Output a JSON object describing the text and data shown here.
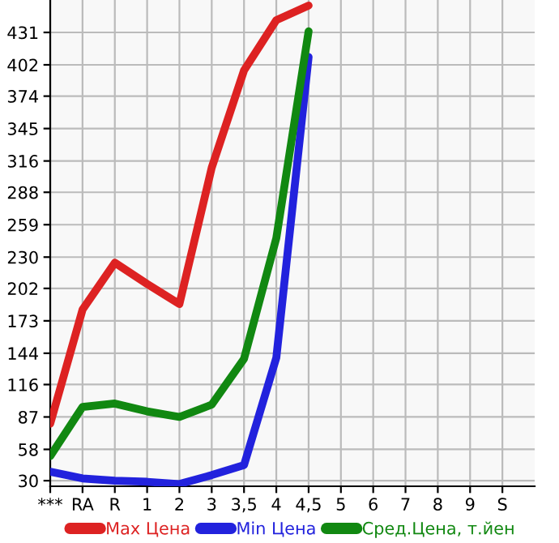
{
  "chart_data": {
    "type": "line",
    "categories": [
      "***",
      "RA",
      "R",
      "1",
      "2",
      "3",
      "3,5",
      "4",
      "4,5",
      "5",
      "6",
      "7",
      "8",
      "9",
      "S"
    ],
    "series": [
      {
        "name": "Max Цена",
        "color": "#dd2222",
        "values": [
          81,
          183,
          225,
          206,
          188,
          310,
          397,
          442,
          455,
          null,
          null,
          null,
          null,
          null,
          null
        ]
      },
      {
        "name": "Min Цена",
        "color": "#2222dd",
        "values": [
          38,
          32,
          30,
          29,
          27,
          35,
          44,
          140,
          409,
          null,
          null,
          null,
          null,
          null,
          null
        ]
      },
      {
        "name": "Сред.Цена, т.йен",
        "color": "#118811",
        "values": [
          52,
          96,
          99,
          92,
          87,
          98,
          139,
          247,
          432,
          null,
          null,
          null,
          null,
          null,
          null
        ]
      }
    ],
    "ylim": [
      25,
      460
    ],
    "yticks": [
      30,
      58,
      87,
      116,
      144,
      173,
      202,
      230,
      259,
      288,
      316,
      345,
      374,
      402,
      431
    ],
    "grid": true,
    "legend": "bottom",
    "marker": "none",
    "line_style": "solid"
  }
}
